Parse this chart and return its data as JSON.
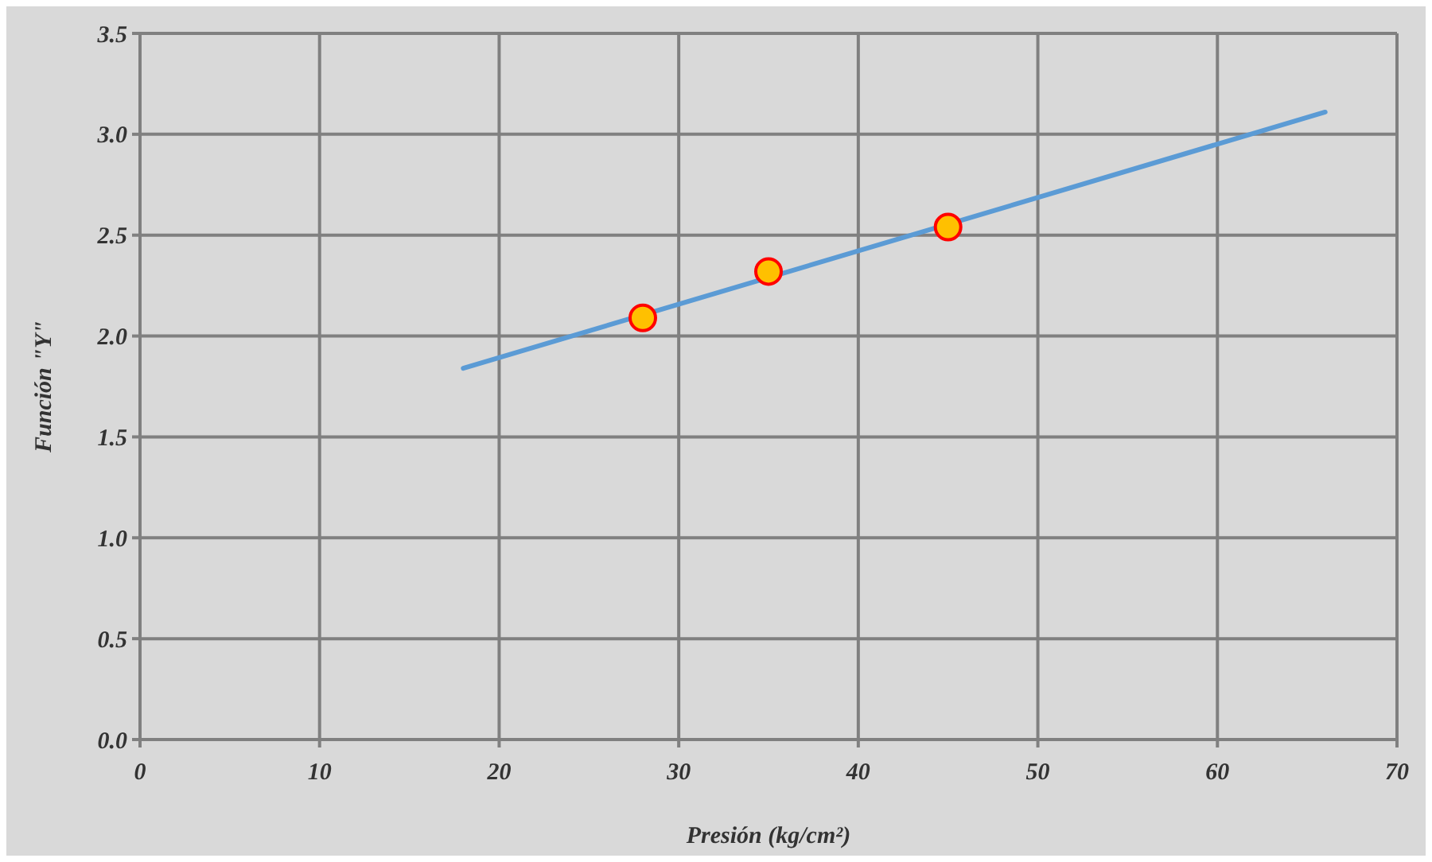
{
  "chart_data": {
    "type": "scatter",
    "xlabel": "Presión (kg/cm²)",
    "ylabel": "Función \"Y\"",
    "xlim": [
      0,
      70
    ],
    "xticks": [
      0,
      10,
      20,
      30,
      40,
      50,
      60,
      70
    ],
    "ylim": [
      0,
      3.5
    ],
    "yticks": [
      {
        "value": 0,
        "label": "0.0"
      },
      {
        "value": 0.5,
        "label": "0.5"
      },
      {
        "value": 1,
        "label": "1.0"
      },
      {
        "value": 1.5,
        "label": "1.5"
      },
      {
        "value": 2,
        "label": "2.0"
      },
      {
        "value": 2.5,
        "label": "2.5"
      },
      {
        "value": 3,
        "label": "3.0"
      },
      {
        "value": 3.5,
        "label": "3.5"
      }
    ],
    "grid": true,
    "series": [
      {
        "type": "line",
        "x": [
          18,
          66
        ],
        "values": [
          1.84,
          3.11
        ],
        "color": "#5b9bd5",
        "marker": "none"
      },
      {
        "x": [
          28,
          35,
          45
        ],
        "values": [
          2.09,
          2.32,
          2.54
        ],
        "color": "#ffc000",
        "marker": "circle"
      }
    ]
  }
}
